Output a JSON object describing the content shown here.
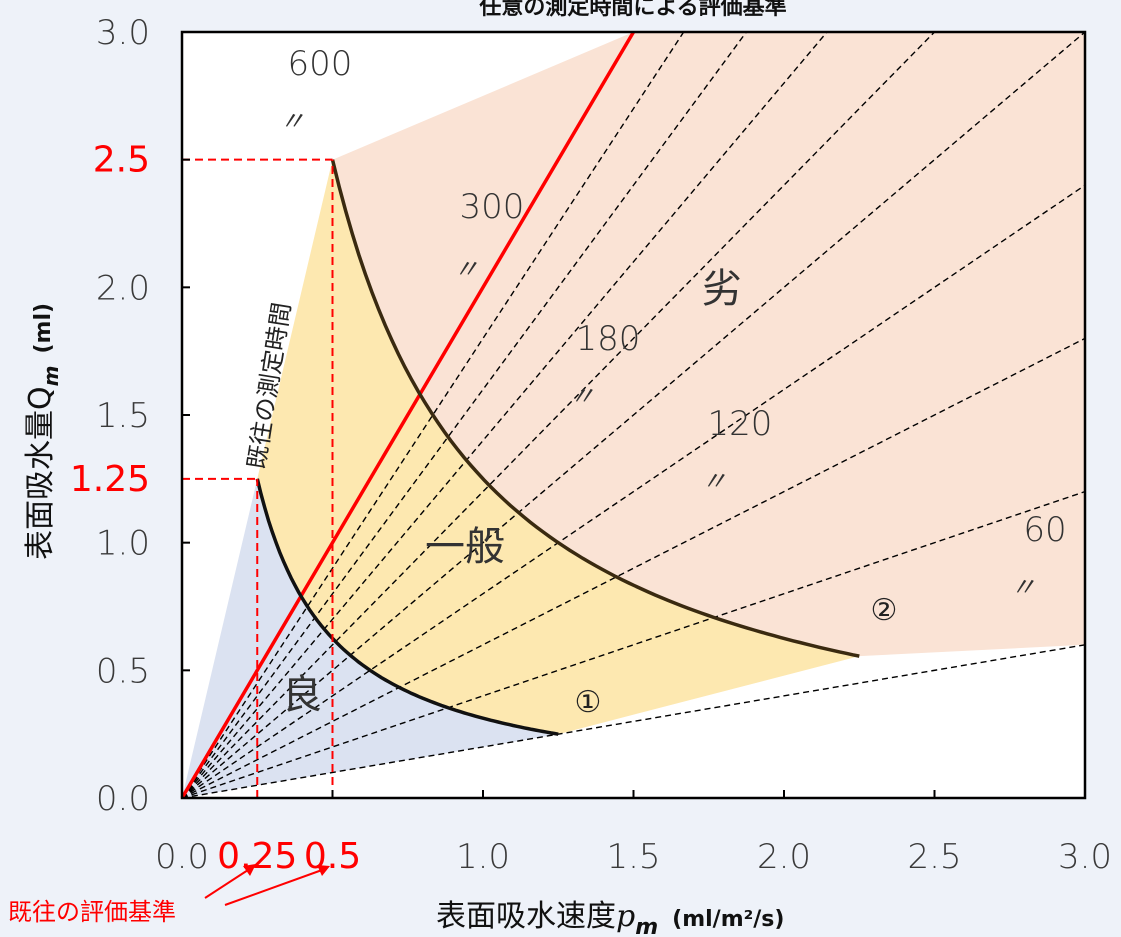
{
  "chart_data": {
    "type": "line",
    "title": "任意の測定時間による評価基準",
    "xlabel": "表面吸水速度",
    "xlabel_symbol": "p",
    "xlabel_subscript": "m",
    "xlabel_unit": "(ml/m²/s)",
    "ylabel": "表面吸水量Q",
    "ylabel_subscript": "m",
    "ylabel_unit": "(ml)",
    "xlim": [
      0,
      3
    ],
    "ylim": [
      0,
      3
    ],
    "x_ticks": [
      "0.0",
      "0.5",
      "1.0",
      "1.5",
      "2.0",
      "2.5",
      "3.0"
    ],
    "y_ticks": [
      "0.0",
      "0.5",
      "1.0",
      "1.5",
      "2.0",
      "2.5",
      "3.0"
    ],
    "red_x_ticks": [
      {
        "x": 0.25,
        "label": "0.25"
      },
      {
        "x": 0.5,
        "label": "0.5"
      }
    ],
    "red_y_ticks": [
      {
        "y": 1.25,
        "label": "1.25"
      },
      {
        "y": 2.5,
        "label": "2.5"
      }
    ],
    "time_lines": [
      {
        "t": 600,
        "label": "600",
        "ditto": "〃"
      },
      {
        "t": 540
      },
      {
        "t": 480
      },
      {
        "t": 420
      },
      {
        "t": 360
      },
      {
        "t": 300,
        "label": "300",
        "ditto": "〃"
      },
      {
        "t": 240
      },
      {
        "t": 180,
        "label": "180",
        "ditto": "〃"
      },
      {
        "t": 120,
        "label": "120",
        "ditto": "〃"
      },
      {
        "t": 60,
        "label": "60",
        "ditto": "〃"
      }
    ],
    "existing_time_line": {
      "t": 600,
      "label": "既往の測定時間",
      "color": "#ff0000"
    },
    "boundary_curves": [
      {
        "name": "①",
        "product": 0.3125,
        "x_range": [
          0.25,
          1.25
        ]
      },
      {
        "name": "②",
        "product": 1.25,
        "x_range": [
          0.5,
          2.25
        ]
      }
    ],
    "zones": [
      {
        "label": "良",
        "color": "#dbe2f1"
      },
      {
        "label": "一般",
        "color": "#fde8b0"
      },
      {
        "label": "劣",
        "color": "#fae3d5"
      }
    ],
    "callout": "既往の評価基準",
    "grid": false
  }
}
